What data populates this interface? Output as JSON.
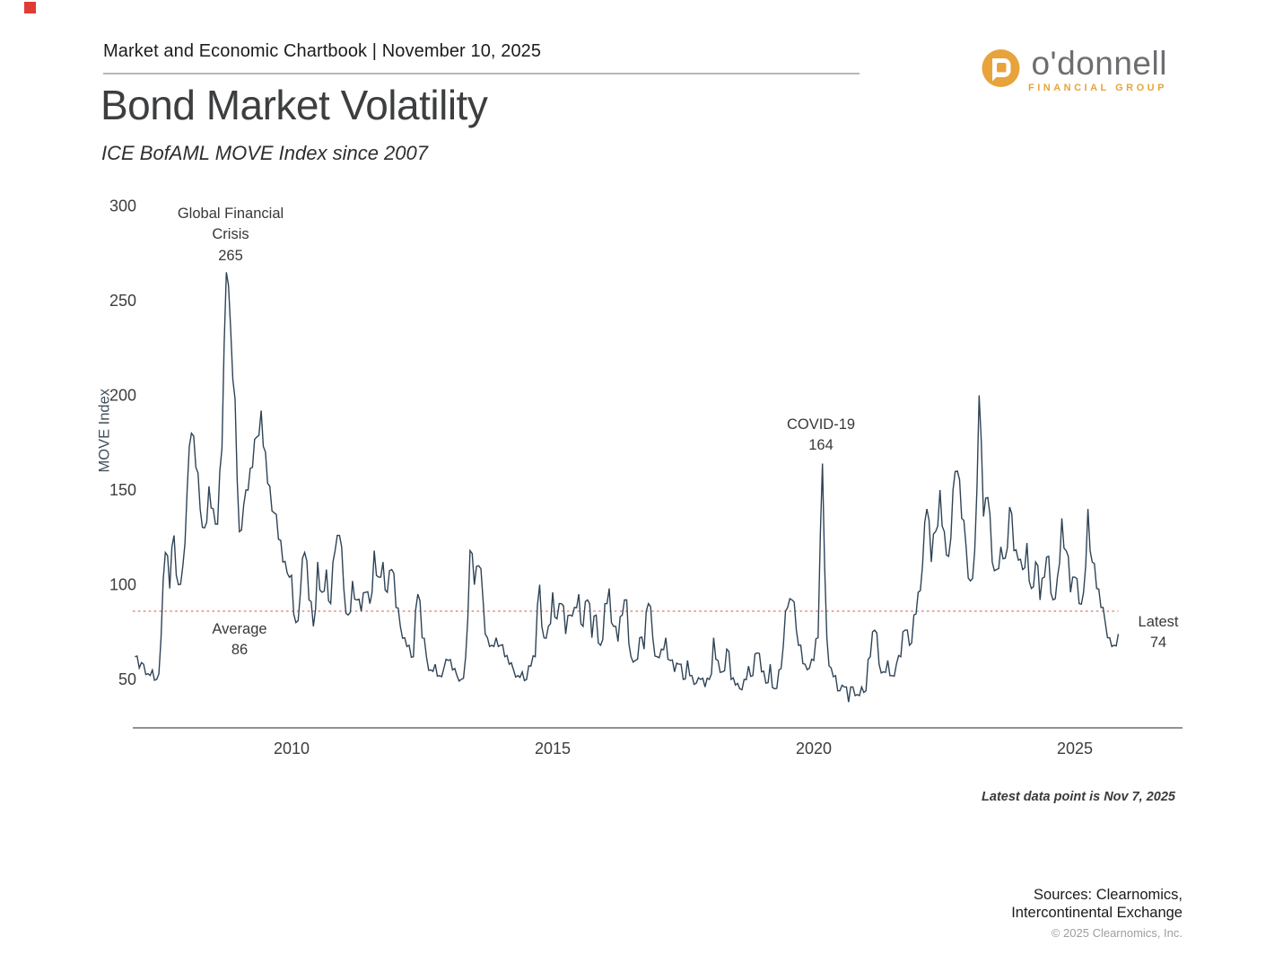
{
  "header": {
    "chartbook_line": "Market and Economic Chartbook | November 10, 2025"
  },
  "logo": {
    "name": "o'donnell",
    "tagline": "FINANCIAL GROUP",
    "icon": "speech-bubble-d-icon",
    "gold": "#E8A33B",
    "gray": "#6D6E71"
  },
  "title": "Bond Market Volatility",
  "subtitle": "ICE BofAML MOVE Index since 2007",
  "chart_data": {
    "type": "line",
    "title": "Bond Market Volatility",
    "subtitle": "ICE BofAML MOVE Index since 2007",
    "ylabel": "MOVE Index",
    "xlabel": "",
    "x_ticks": [
      2010,
      2015,
      2020,
      2025
    ],
    "y_ticks": [
      300,
      250,
      200,
      150,
      100,
      50
    ],
    "ylim": [
      25,
      305
    ],
    "xlim": [
      2006.9,
      2027.1
    ],
    "grid": false,
    "legend": "none",
    "line_color": "#2E4356",
    "average_line": {
      "value": 86,
      "style": "dotted",
      "color": "#E6897E"
    },
    "series": [
      {
        "name": "MOVE Index",
        "start_year": 2007,
        "points_per_year": 12,
        "values": [
          62,
          56,
          58,
          53,
          55,
          50,
          72,
          117,
          98,
          126,
          100,
          110,
          150,
          180,
          162,
          140,
          130,
          152,
          140,
          132,
          172,
          265,
          235,
          198,
          128,
          142,
          150,
          162,
          178,
          192,
          170,
          152,
          138,
          124,
          112,
          106,
          105,
          80,
          95,
          117,
          92,
          78,
          112,
          96,
          108,
          90,
          118,
          126,
          98,
          84,
          102,
          92,
          86,
          96,
          90,
          118,
          104,
          112,
          96,
          108,
          88,
          78,
          72,
          68,
          62,
          95,
          72,
          62,
          55,
          58,
          52,
          56,
          60,
          55,
          52,
          50,
          62,
          118,
          100,
          110,
          92,
          72,
          68,
          72,
          68,
          62,
          58,
          55,
          52,
          54,
          50,
          57,
          62,
          100,
          72,
          78,
          96,
          82,
          90,
          74,
          84,
          88,
          95,
          78,
          92,
          72,
          84,
          68,
          90,
          98,
          78,
          70,
          84,
          92,
          62,
          60,
          72,
          66,
          90,
          72,
          62,
          66,
          72,
          60,
          54,
          58,
          50,
          60,
          52,
          48,
          50,
          46,
          50,
          72,
          60,
          54,
          66,
          50,
          47,
          45,
          50,
          57,
          52,
          64,
          54,
          48,
          58,
          45,
          55,
          68,
          88,
          92,
          76,
          68,
          58,
          56,
          60,
          72,
          164,
          72,
          56,
          52,
          44,
          46,
          38,
          46,
          42,
          46,
          44,
          62,
          76,
          58,
          54,
          60,
          52,
          58,
          62,
          76,
          68,
          84,
          96,
          110,
          140,
          112,
          128,
          150,
          128,
          115,
          150,
          160,
          135,
          120,
          102,
          118,
          200,
          136,
          146,
          112,
          108,
          120,
          114,
          141,
          118,
          113,
          108,
          122,
          98,
          112,
          92,
          104,
          115,
          92,
          104,
          135,
          118,
          96,
          104,
          90,
          96,
          140,
          112,
          98,
          88,
          80,
          72,
          68,
          74
        ]
      }
    ],
    "annotations": [
      {
        "id": "gfc",
        "label": "Global Financial Crisis",
        "value": "265"
      },
      {
        "id": "covid",
        "label": "COVID-19",
        "value": "164"
      },
      {
        "id": "average",
        "label": "Average",
        "value": "86"
      },
      {
        "id": "latest",
        "label": "Latest",
        "value": "74"
      }
    ]
  },
  "notes": {
    "latest_note": "Latest data point is Nov 7, 2025"
  },
  "footer": {
    "sources_line1": "Sources: Clearnomics,",
    "sources_line2": "Intercontinental Exchange",
    "copyright": "© 2025 Clearnomics, Inc."
  }
}
